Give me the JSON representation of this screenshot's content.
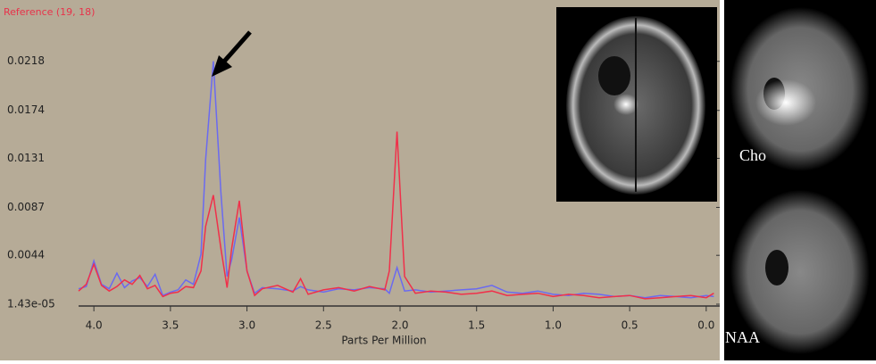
{
  "chart_data": {
    "type": "line",
    "title": "Reference (19, 18)",
    "xlabel": "Parts Per Million",
    "annotations": [
      "Cho",
      "NAA"
    ],
    "x": [
      4.1,
      4.05,
      4.0,
      3.95,
      3.9,
      3.85,
      3.8,
      3.75,
      3.7,
      3.65,
      3.6,
      3.55,
      3.5,
      3.45,
      3.4,
      3.35,
      3.3,
      3.27,
      3.22,
      3.17,
      3.13,
      3.1,
      3.05,
      3.0,
      2.95,
      2.9,
      2.8,
      2.7,
      2.65,
      2.6,
      2.5,
      2.4,
      2.3,
      2.2,
      2.1,
      2.07,
      2.02,
      1.97,
      1.9,
      1.8,
      1.7,
      1.6,
      1.5,
      1.4,
      1.3,
      1.2,
      1.1,
      1.0,
      0.9,
      0.8,
      0.7,
      0.6,
      0.5,
      0.4,
      0.3,
      0.2,
      0.1,
      0.0,
      -0.05
    ],
    "series": [
      {
        "color": "#6a6af0",
        "values": [
          0.0014,
          0.0016,
          0.0039,
          0.0018,
          0.0014,
          0.0028,
          0.0015,
          0.0021,
          0.0024,
          0.0016,
          0.0027,
          0.0008,
          0.0011,
          0.0013,
          0.0022,
          0.0018,
          0.0045,
          0.013,
          0.0218,
          0.01,
          0.0025,
          0.004,
          0.0078,
          0.003,
          0.001,
          0.0015,
          0.0014,
          0.0012,
          0.0016,
          0.0013,
          0.0011,
          0.0014,
          0.0013,
          0.0015,
          0.0014,
          0.001,
          0.0033,
          0.0012,
          0.0013,
          0.0011,
          0.0012,
          0.0013,
          0.0014,
          0.0017,
          0.0011,
          0.001,
          0.0012,
          0.0009,
          0.0008,
          0.001,
          0.0009,
          0.0007,
          0.0008,
          0.0006,
          0.0008,
          0.0007,
          0.0006,
          0.0008,
          0.0007
        ]
      },
      {
        "color": "#f0304a",
        "values": [
          0.0012,
          0.0018,
          0.0036,
          0.0017,
          0.0012,
          0.0016,
          0.0022,
          0.0018,
          0.0026,
          0.0014,
          0.0017,
          0.0007,
          0.001,
          0.0011,
          0.0016,
          0.0015,
          0.003,
          0.007,
          0.0098,
          0.005,
          0.0015,
          0.005,
          0.0093,
          0.003,
          0.0008,
          0.0014,
          0.0017,
          0.0011,
          0.0023,
          0.0009,
          0.0013,
          0.0015,
          0.0012,
          0.0016,
          0.0013,
          0.003,
          0.0155,
          0.0025,
          0.001,
          0.0012,
          0.0011,
          0.0009,
          0.001,
          0.0012,
          0.0008,
          0.0009,
          0.001,
          0.0007,
          0.0009,
          0.0008,
          0.0006,
          0.0007,
          0.0008,
          0.0005,
          0.0006,
          0.0007,
          0.0008,
          0.0006,
          0.001
        ]
      }
    ],
    "xlim": [
      4.1,
      -0.1
    ],
    "xticks": [
      {
        "value": 4,
        "label": "4.0"
      },
      3.5,
      {
        "value": 3,
        "label": "3.0"
      },
      2.5,
      {
        "value": 2,
        "label": "2.0"
      },
      1.5,
      {
        "value": 1,
        "label": "1.0"
      },
      0.5,
      {
        "value": 0,
        "label": "0.0"
      }
    ],
    "ylim": [
      1.43e-05,
      0.0265
    ],
    "yticks": [
      {
        "value": 1.43e-05,
        "label": "1.43e-05"
      },
      0.0044,
      0.0087,
      0.0131,
      0.0174,
      0.0218
    ]
  }
}
